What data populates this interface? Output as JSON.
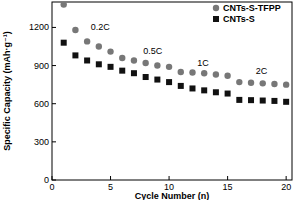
{
  "chart_data": {
    "type": "scatter",
    "x_label": "Cycle Number (n)",
    "y_label": "Specific Capacity (mAh·g⁻¹)",
    "xlim": [
      0,
      20.5
    ],
    "xticks": [
      0,
      5,
      10,
      15,
      20
    ],
    "ylim": [
      0,
      1400
    ],
    "yticks": [
      0,
      300,
      600,
      900,
      1200
    ],
    "legend": "upper right",
    "annotations": [
      "0.2C",
      "0.5C",
      "1C",
      "2C"
    ],
    "x": [
      1,
      2,
      3,
      4,
      5,
      6,
      7,
      8,
      9,
      10,
      11,
      12,
      13,
      14,
      15,
      16,
      17,
      18,
      19,
      20
    ],
    "series": [
      {
        "name": "CNTs-S-TFPP",
        "color": "#777777",
        "marker": "circle",
        "values": [
          1380,
          1180,
          1090,
          1050,
          1010,
          960,
          940,
          920,
          900,
          890,
          850,
          845,
          840,
          830,
          820,
          770,
          765,
          760,
          755,
          750
        ]
      },
      {
        "name": "CNTs-S",
        "color": "#111111",
        "marker": "square",
        "values": [
          1080,
          980,
          940,
          910,
          890,
          860,
          840,
          810,
          790,
          770,
          740,
          720,
          705,
          690,
          680,
          630,
          628,
          625,
          622,
          615
        ]
      }
    ]
  }
}
